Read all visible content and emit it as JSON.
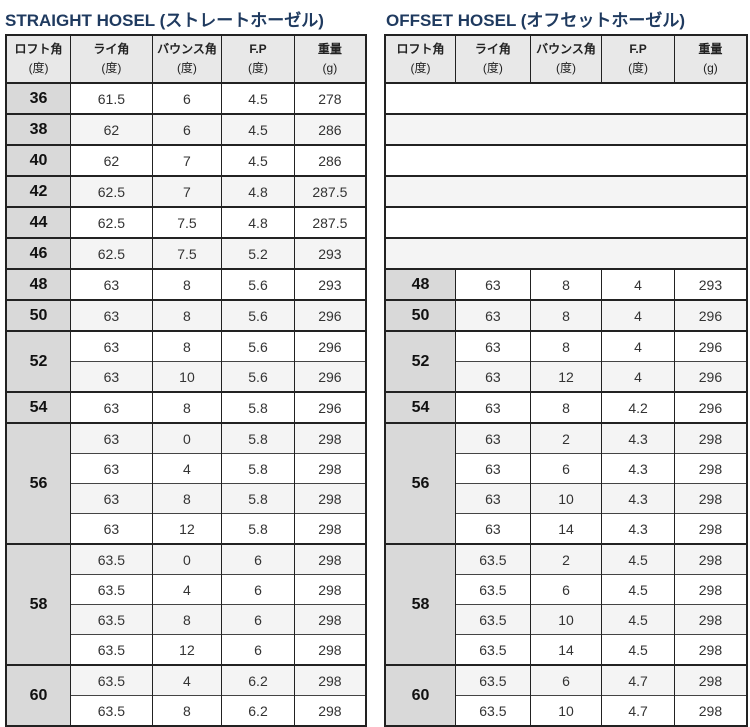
{
  "straight": {
    "title": "STRAIGHT HOSEL (ストレートホーゼル)"
  },
  "offset": {
    "title": "OFFSET HOSEL (オフセットホーゼル)"
  },
  "headers": [
    {
      "label": "ロフト角",
      "unit": "(度)"
    },
    {
      "label": "ライ角",
      "unit": "(度)"
    },
    {
      "label": "バウンス角",
      "unit": "(度)"
    },
    {
      "label": "F.P",
      "unit": "(度)"
    },
    {
      "label": "重量",
      "unit": "(g)"
    }
  ],
  "straight_groups": [
    {
      "loft": "36",
      "rows": [
        [
          "61.5",
          "6",
          "4.5",
          "278"
        ]
      ]
    },
    {
      "loft": "38",
      "rows": [
        [
          "62",
          "6",
          "4.5",
          "286"
        ]
      ]
    },
    {
      "loft": "40",
      "rows": [
        [
          "62",
          "7",
          "4.5",
          "286"
        ]
      ]
    },
    {
      "loft": "42",
      "rows": [
        [
          "62.5",
          "7",
          "4.8",
          "287.5"
        ]
      ]
    },
    {
      "loft": "44",
      "rows": [
        [
          "62.5",
          "7.5",
          "4.8",
          "287.5"
        ]
      ]
    },
    {
      "loft": "46",
      "rows": [
        [
          "62.5",
          "7.5",
          "5.2",
          "293"
        ]
      ]
    },
    {
      "loft": "48",
      "rows": [
        [
          "63",
          "8",
          "5.6",
          "293"
        ]
      ]
    },
    {
      "loft": "50",
      "rows": [
        [
          "63",
          "8",
          "5.6",
          "296"
        ]
      ]
    },
    {
      "loft": "52",
      "rows": [
        [
          "63",
          "8",
          "5.6",
          "296"
        ],
        [
          "63",
          "10",
          "5.6",
          "296"
        ]
      ]
    },
    {
      "loft": "54",
      "rows": [
        [
          "63",
          "8",
          "5.8",
          "296"
        ]
      ]
    },
    {
      "loft": "56",
      "rows": [
        [
          "63",
          "0",
          "5.8",
          "298"
        ],
        [
          "63",
          "4",
          "5.8",
          "298"
        ],
        [
          "63",
          "8",
          "5.8",
          "298"
        ],
        [
          "63",
          "12",
          "5.8",
          "298"
        ]
      ]
    },
    {
      "loft": "58",
      "rows": [
        [
          "63.5",
          "0",
          "6",
          "298"
        ],
        [
          "63.5",
          "4",
          "6",
          "298"
        ],
        [
          "63.5",
          "8",
          "6",
          "298"
        ],
        [
          "63.5",
          "12",
          "6",
          "298"
        ]
      ]
    },
    {
      "loft": "60",
      "rows": [
        [
          "63.5",
          "4",
          "6.2",
          "298"
        ],
        [
          "63.5",
          "8",
          "6.2",
          "298"
        ]
      ]
    }
  ],
  "offset_groups": [
    {
      "loft": null,
      "rows": [
        []
      ]
    },
    {
      "loft": null,
      "rows": [
        []
      ]
    },
    {
      "loft": null,
      "rows": [
        []
      ]
    },
    {
      "loft": null,
      "rows": [
        []
      ]
    },
    {
      "loft": null,
      "rows": [
        []
      ]
    },
    {
      "loft": null,
      "rows": [
        []
      ]
    },
    {
      "loft": "48",
      "rows": [
        [
          "63",
          "8",
          "4",
          "293"
        ]
      ]
    },
    {
      "loft": "50",
      "rows": [
        [
          "63",
          "8",
          "4",
          "296"
        ]
      ]
    },
    {
      "loft": "52",
      "rows": [
        [
          "63",
          "8",
          "4",
          "296"
        ],
        [
          "63",
          "12",
          "4",
          "296"
        ]
      ]
    },
    {
      "loft": "54",
      "rows": [
        [
          "63",
          "8",
          "4.2",
          "296"
        ]
      ]
    },
    {
      "loft": "56",
      "rows": [
        [
          "63",
          "2",
          "4.3",
          "298"
        ],
        [
          "63",
          "6",
          "4.3",
          "298"
        ],
        [
          "63",
          "10",
          "4.3",
          "298"
        ],
        [
          "63",
          "14",
          "4.3",
          "298"
        ]
      ]
    },
    {
      "loft": "58",
      "rows": [
        [
          "63.5",
          "2",
          "4.5",
          "298"
        ],
        [
          "63.5",
          "6",
          "4.5",
          "298"
        ],
        [
          "63.5",
          "10",
          "4.5",
          "298"
        ],
        [
          "63.5",
          "14",
          "4.5",
          "298"
        ]
      ]
    },
    {
      "loft": "60",
      "rows": [
        [
          "63.5",
          "6",
          "4.7",
          "298"
        ],
        [
          "63.5",
          "10",
          "4.7",
          "298"
        ]
      ]
    }
  ]
}
